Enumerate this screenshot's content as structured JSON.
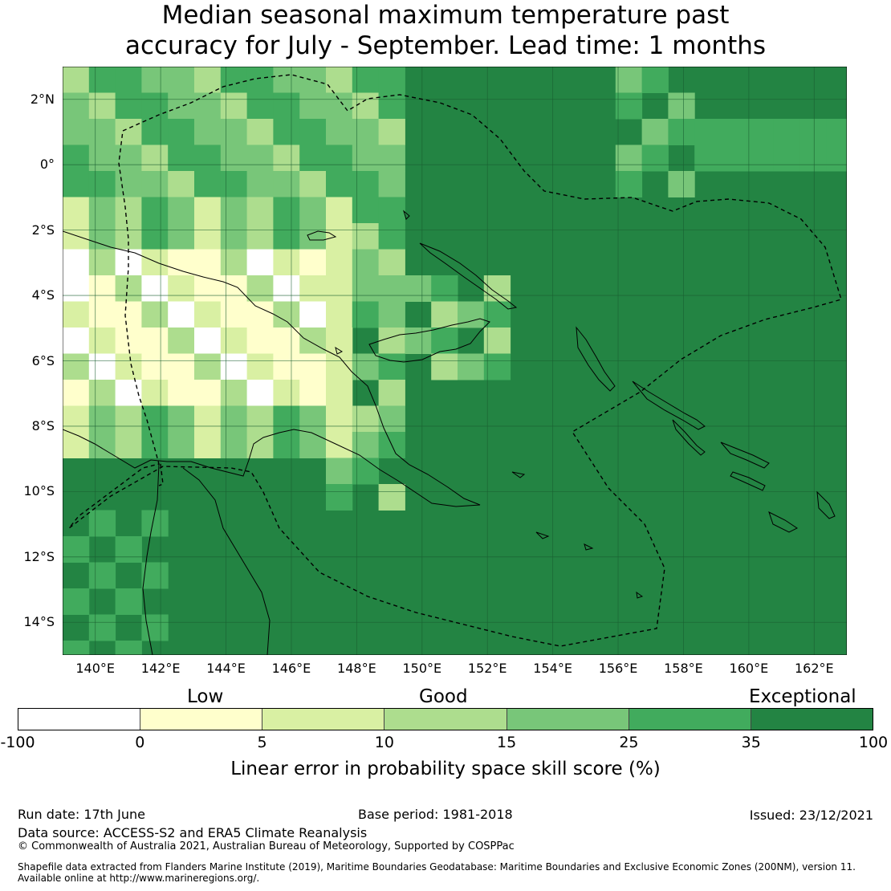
{
  "title": {
    "line1": "Median seasonal maximum temperature past",
    "line2": "accuracy for July - September. Lead time: 1 months"
  },
  "map": {
    "lon_min": 139.0,
    "lon_max": 163.0,
    "lat_min": -15.0,
    "lat_max": 3.0,
    "lat_ticks": [
      {
        "value": 2,
        "label": "2°N"
      },
      {
        "value": 0,
        "label": "0°"
      },
      {
        "value": -2,
        "label": "2°S"
      },
      {
        "value": -4,
        "label": "4°S"
      },
      {
        "value": -6,
        "label": "6°S"
      },
      {
        "value": -8,
        "label": "8°S"
      },
      {
        "value": -10,
        "label": "10°S"
      },
      {
        "value": -12,
        "label": "12°S"
      },
      {
        "value": -14,
        "label": "14°S"
      }
    ],
    "lon_ticks": [
      {
        "value": 140,
        "label": "140°E"
      },
      {
        "value": 142,
        "label": "142°E"
      },
      {
        "value": 144,
        "label": "144°E"
      },
      {
        "value": 146,
        "label": "146°E"
      },
      {
        "value": 148,
        "label": "148°E"
      },
      {
        "value": 150,
        "label": "150°E"
      },
      {
        "value": 152,
        "label": "152°E"
      },
      {
        "value": 154,
        "label": "154°E"
      },
      {
        "value": 156,
        "label": "156°E"
      },
      {
        "value": 158,
        "label": "158°E"
      },
      {
        "value": 160,
        "label": "160°E"
      },
      {
        "value": 162,
        "label": "162°E"
      }
    ],
    "skill_bands": [
      {
        "range": [
          -100,
          0
        ],
        "color": "#ffffff"
      },
      {
        "range": [
          0,
          5
        ],
        "color": "#ffffcc"
      },
      {
        "range": [
          5,
          10
        ],
        "color": "#d9f0a3"
      },
      {
        "range": [
          10,
          15
        ],
        "color": "#addd8e"
      },
      {
        "range": [
          15,
          25
        ],
        "color": "#78c679"
      },
      {
        "range": [
          25,
          35
        ],
        "color": "#41ab5d"
      },
      {
        "range": [
          35,
          100
        ],
        "color": "#238443"
      }
    ]
  },
  "legend": {
    "categories": [
      "Low",
      "Good",
      "Exceptional"
    ],
    "ticks": [
      "-100",
      "0",
      "5",
      "10",
      "15",
      "25",
      "35",
      "100"
    ],
    "label": "Linear error in probability space skill score (%)"
  },
  "footer": {
    "run_date": "Run date: 17th June",
    "base_period": "Base period: 1981-2018",
    "issued": "Issued: 23/12/2021",
    "data_source": "Data source: ACCESS-S2 and ERA5 Climate Reanalysis",
    "copyright": "© Commonwealth of Australia 2021, Australian Bureau of Meteorology, Supported by COSPPac",
    "shapefile_line1": "Shapefile data extracted from Flanders Marine Institute (2019), Maritime Boundaries Geodatabase: Maritime Boundaries and Exclusive Economic Zones (200NM), version 11.",
    "shapefile_line2": "Available online at http://www.marineregions.org/."
  }
}
